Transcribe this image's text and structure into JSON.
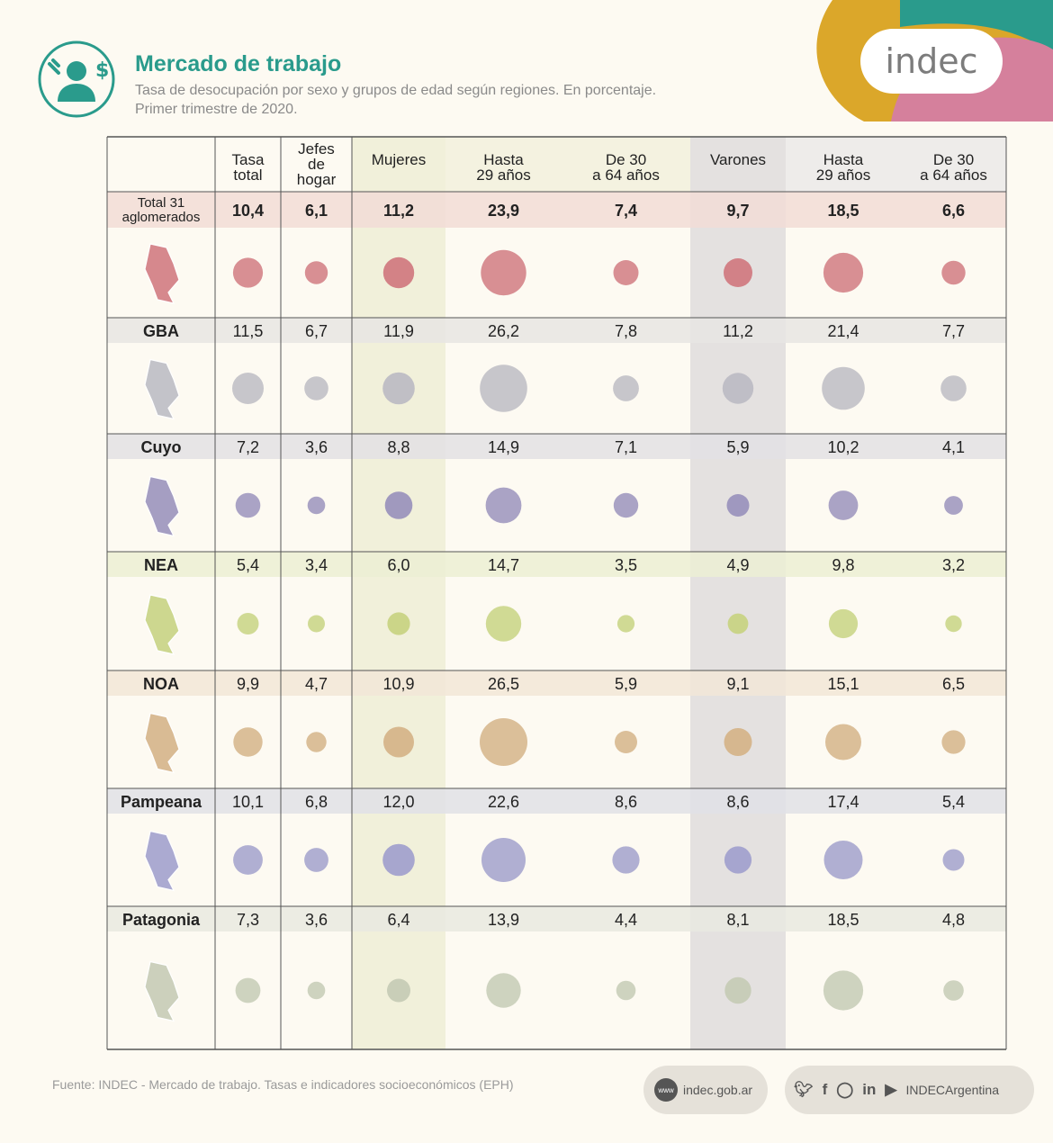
{
  "header": {
    "title": "Mercado de trabajo",
    "subtitle_line1": "Tasa de desocupación por sexo y grupos de edad según regiones. En porcentaje.",
    "subtitle_line2": "Primer trimestre de 2020.",
    "brand": "indec",
    "icon": "worker-money-icon"
  },
  "footer": {
    "source": "Fuente: INDEC - Mercado de trabajo. Tasas e indicadores socioeconómicos (EPH)",
    "web_badge": "www",
    "website": "indec.gob.ar",
    "social_icons": [
      "twitter-icon",
      "facebook-icon",
      "instagram-icon",
      "linkedin-icon",
      "youtube-icon"
    ],
    "social_handle": "INDECArgentina"
  },
  "colors": {
    "accent_teal": "#2a9b8c",
    "mujeres_col": "#f1f0da",
    "varones_col": "#e4e1e0",
    "deco_yellow": "#dba72a",
    "deco_teal": "#2a9b8c",
    "deco_pink": "#d5809c"
  },
  "chart_data": {
    "type": "table",
    "columns": [
      [
        "Tasa",
        "total"
      ],
      [
        "Jefes",
        "de",
        "hogar"
      ],
      [
        "Mujeres"
      ],
      [
        "Hasta",
        "29 años"
      ],
      [
        "De 30",
        "a 64 años"
      ],
      [
        "Varones"
      ],
      [
        "Hasta",
        "29 años"
      ],
      [
        "De 30",
        "a 64 años"
      ]
    ],
    "rows": [
      {
        "region": [
          "Total 31",
          "aglomerados"
        ],
        "values": [
          10.4,
          6.1,
          11.2,
          23.9,
          7.4,
          9.7,
          18.5,
          6.6
        ],
        "labels": [
          "10,4",
          "6,1",
          "11,2",
          "23,9",
          "7,4",
          "9,7",
          "18,5",
          "6,6"
        ],
        "color": "#d17b82",
        "band": "#f2dcd6",
        "bold": true
      },
      {
        "region": [
          "GBA"
        ],
        "values": [
          11.5,
          6.7,
          11.9,
          26.2,
          7.8,
          11.2,
          21.4,
          7.7
        ],
        "labels": [
          "11,5",
          "6,7",
          "11,9",
          "26,2",
          "7,8",
          "11,2",
          "21,4",
          "7,7"
        ],
        "color": "#bdbcc4",
        "band": "#e7e5e3",
        "bold": false
      },
      {
        "region": [
          "Cuyo"
        ],
        "values": [
          7.2,
          3.6,
          8.8,
          14.9,
          7.1,
          5.9,
          10.2,
          4.1
        ],
        "labels": [
          "7,2",
          "3,6",
          "8,8",
          "14,9",
          "7,1",
          "5,9",
          "10,2",
          "4,1"
        ],
        "color": "#9b93bd",
        "band": "#e3e0e4",
        "bold": false
      },
      {
        "region": [
          "NEA"
        ],
        "values": [
          5.4,
          3.4,
          6.0,
          14.7,
          3.5,
          4.9,
          9.8,
          3.2
        ],
        "labels": [
          "5,4",
          "3,4",
          "6,0",
          "14,7",
          "3,5",
          "4,9",
          "9,8",
          "3,2"
        ],
        "color": "#c8d384",
        "band": "#ecefd4",
        "bold": false
      },
      {
        "region": [
          "NOA"
        ],
        "values": [
          9.9,
          4.7,
          10.9,
          26.5,
          5.9,
          9.1,
          15.1,
          6.5
        ],
        "labels": [
          "9,9",
          "4,7",
          "10,9",
          "26,5",
          "5,9",
          "9,1",
          "15,1",
          "6,5"
        ],
        "color": "#d5b48a",
        "band": "#f2e6d7",
        "bold": false
      },
      {
        "region": [
          "Pampeana"
        ],
        "values": [
          10.1,
          6.8,
          12.0,
          22.6,
          8.6,
          8.6,
          17.4,
          5.4
        ],
        "labels": [
          "10,1",
          "6,8",
          "12,0",
          "22,6",
          "8,6",
          "8,6",
          "17,4",
          "5,4"
        ],
        "color": "#a2a1cd",
        "band": "#e1e1e6",
        "bold": false
      },
      {
        "region": [
          "Patagonia"
        ],
        "values": [
          7.3,
          3.6,
          6.4,
          13.9,
          4.4,
          8.1,
          18.5,
          4.8
        ],
        "labels": [
          "7,3",
          "3,6",
          "6,4",
          "13,9",
          "4,4",
          "8,1",
          "18,5",
          "4,8"
        ],
        "color": "#c6cbb6",
        "band": "#e9e9e1",
        "bold": false
      }
    ]
  }
}
